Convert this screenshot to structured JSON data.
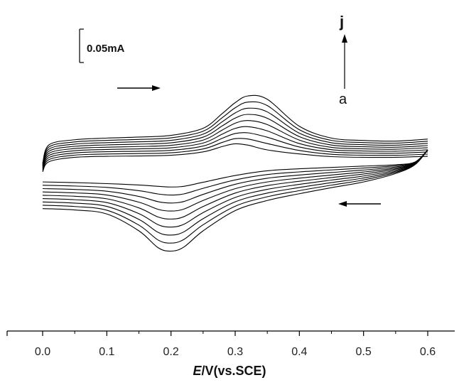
{
  "chart_data": {
    "type": "line",
    "xlabel_italic": "E",
    "xlabel_rest": "/V(vs.SCE)",
    "xlim": [
      0.0,
      0.6
    ],
    "xticks": [
      "0.0",
      "0.1",
      "0.2",
      "0.3",
      "0.4",
      "0.5",
      "0.6"
    ],
    "grid": false,
    "legend": "none",
    "line_color": "#000000",
    "current_scale_bar": "0.05mA",
    "current_axis_label": "j",
    "series_start_label": "a",
    "curve_count": 9,
    "curves": {
      "forward": {
        "x": [
          0.0,
          0.01,
          0.05,
          0.1,
          0.15,
          0.2,
          0.25,
          0.28,
          0.3,
          0.32,
          0.35,
          0.4,
          0.45,
          0.5,
          0.55,
          0.6
        ],
        "first_current_mA": [
          -0.025,
          0.005,
          0.018,
          0.021,
          0.022,
          0.024,
          0.034,
          0.05,
          0.058,
          0.054,
          0.04,
          0.028,
          0.02,
          0.018,
          0.018,
          0.021
        ],
        "last_current_mA": [
          0.0,
          0.055,
          0.07,
          0.075,
          0.078,
          0.083,
          0.104,
          0.148,
          0.18,
          0.2,
          0.19,
          0.11,
          0.075,
          0.068,
          0.066,
          0.072
        ]
      },
      "reverse": {
        "x": [
          0.6,
          0.58,
          0.55,
          0.5,
          0.45,
          0.4,
          0.35,
          0.3,
          0.25,
          0.22,
          0.2,
          0.18,
          0.15,
          0.1,
          0.05,
          0.0
        ],
        "first_current_mA": [
          0.04,
          0.004,
          -0.004,
          -0.008,
          -0.012,
          -0.016,
          -0.022,
          -0.036,
          -0.056,
          -0.068,
          -0.07,
          -0.068,
          -0.064,
          -0.06,
          -0.057,
          -0.055
        ],
        "last_current_mA": [
          0.04,
          -0.004,
          -0.03,
          -0.055,
          -0.072,
          -0.09,
          -0.11,
          -0.14,
          -0.2,
          -0.248,
          -0.26,
          -0.25,
          -0.2,
          -0.15,
          -0.138,
          -0.134
        ]
      }
    },
    "sweep_direction": {
      "forward": "right",
      "reverse": "left"
    }
  }
}
